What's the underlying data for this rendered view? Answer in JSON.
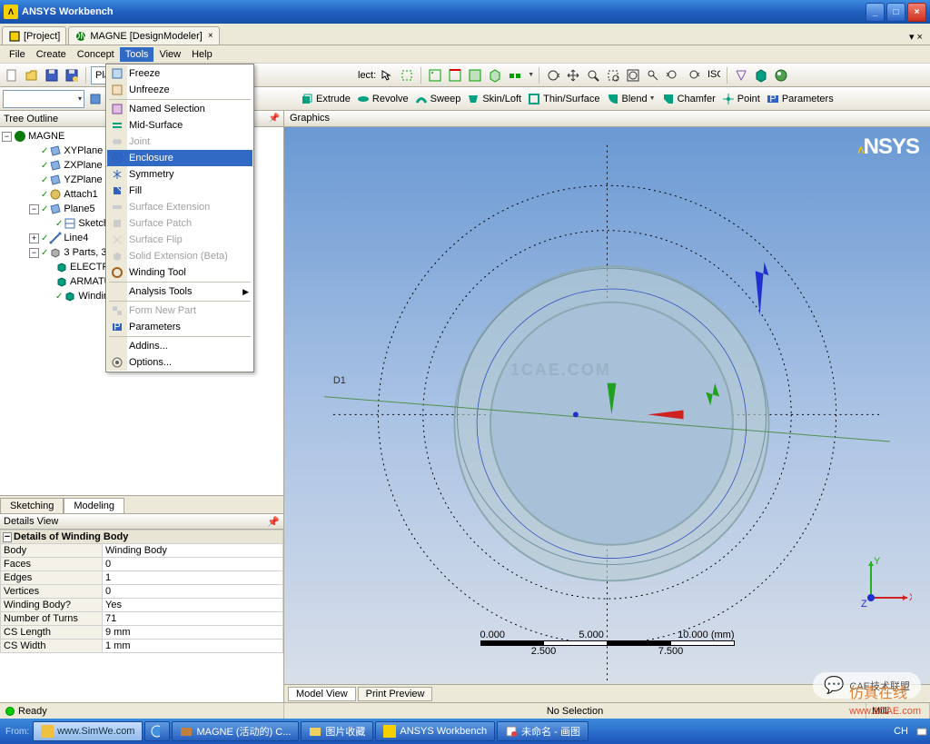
{
  "title": "ANSYS Workbench",
  "tabs": [
    {
      "label": "[Project]",
      "icon": "project"
    },
    {
      "label": "MAGNE [DesignModeler]",
      "icon": "dm",
      "closable": true
    }
  ],
  "menu": [
    "File",
    "Create",
    "Concept",
    "Tools",
    "View",
    "Help"
  ],
  "active_menu": "Tools",
  "combo_plane": "Plane5",
  "combo_sketch": "",
  "toolbar2": {
    "select_label": "lect:",
    "generate": "",
    "extrude": "Extrude",
    "revolve": "Revolve",
    "sweep": "Sweep",
    "skinloft": "Skin/Loft",
    "thin": "Thin/Surface",
    "blend": "Blend",
    "chamfer": "Chamfer",
    "point": "Point",
    "parameters": "Parameters"
  },
  "tools_menu": [
    {
      "label": "Freeze",
      "icon": "freeze"
    },
    {
      "label": "Unfreeze",
      "icon": "unfreeze"
    },
    {
      "sep": true
    },
    {
      "label": "Named Selection",
      "icon": "namedsel"
    },
    {
      "label": "Mid-Surface",
      "icon": "midsurf"
    },
    {
      "label": "Joint",
      "icon": "joint",
      "disabled": true
    },
    {
      "label": "Enclosure",
      "icon": "enclosure",
      "selected": true
    },
    {
      "label": "Symmetry",
      "icon": "symmetry"
    },
    {
      "label": "Fill",
      "icon": "fill"
    },
    {
      "label": "Surface Extension",
      "icon": "surfext",
      "disabled": true
    },
    {
      "label": "Surface Patch",
      "icon": "surfpatch",
      "disabled": true
    },
    {
      "label": "Surface Flip",
      "icon": "surfflip",
      "disabled": true
    },
    {
      "label": "Solid Extension (Beta)",
      "icon": "solidext",
      "disabled": true
    },
    {
      "label": "Winding Tool",
      "icon": "winding"
    },
    {
      "sep": true
    },
    {
      "label": "Analysis Tools",
      "submenu": true
    },
    {
      "sep": true
    },
    {
      "label": "Form New Part",
      "icon": "formpart",
      "disabled": true
    },
    {
      "label": "Parameters",
      "icon": "params"
    },
    {
      "sep": true
    },
    {
      "label": "Addins..."
    },
    {
      "label": "Options...",
      "icon": "options"
    }
  ],
  "tree": {
    "header": "Tree Outline",
    "root": "MAGNE",
    "items": [
      {
        "label": "XYPlane",
        "indent": 1,
        "icon": "plane",
        "check": true
      },
      {
        "label": "ZXPlane",
        "indent": 1,
        "icon": "plane",
        "check": true
      },
      {
        "label": "YZPlane",
        "indent": 1,
        "icon": "plane",
        "check": true
      },
      {
        "label": "Attach1",
        "indent": 1,
        "icon": "attach",
        "check": true
      },
      {
        "label": "Plane5",
        "indent": 1,
        "icon": "plane",
        "check": true,
        "expand": "-"
      },
      {
        "label": "Sketch",
        "indent": 2,
        "icon": "sketch",
        "check": true
      },
      {
        "label": "Line4",
        "indent": 1,
        "icon": "line",
        "check": true,
        "expand": "+"
      },
      {
        "label": "3 Parts, 3",
        "indent": 1,
        "icon": "parts",
        "check": true,
        "expand": "-"
      },
      {
        "label": "ELECTR",
        "indent": 2,
        "icon": "body"
      },
      {
        "label": "ARMATU",
        "indent": 2,
        "icon": "body"
      },
      {
        "label": "Windin",
        "indent": 2,
        "icon": "body",
        "check": true
      }
    ]
  },
  "sketch_tabs": [
    "Sketching",
    "Modeling"
  ],
  "sketch_active": "Modeling",
  "details": {
    "header": "Details View",
    "section": "Details of Winding Body",
    "rows": [
      [
        "Body",
        "Winding Body"
      ],
      [
        "Faces",
        "0"
      ],
      [
        "Edges",
        "1"
      ],
      [
        "Vertices",
        "0"
      ],
      [
        "Winding Body?",
        "Yes"
      ],
      [
        "Number of Turns",
        "71"
      ],
      [
        "CS Length",
        "9 mm"
      ],
      [
        "CS Width",
        "1 mm"
      ]
    ]
  },
  "graphics_header": "Graphics",
  "dim_label": "D1",
  "view_tabs": [
    "Model View",
    "Print Preview"
  ],
  "view_active": "Model View",
  "scale": {
    "labels_top": [
      "0.000",
      "5.000",
      "10.000 (mm)"
    ],
    "labels_bot": [
      "2.500",
      "7.500"
    ]
  },
  "status": {
    "ready": "Ready",
    "sel": "No Selection",
    "units": "Milli"
  },
  "taskbar": [
    {
      "label": "www.SimWe.com",
      "light": true
    },
    {
      "icon": "ie"
    },
    {
      "label": "MAGNE (活动的) C...",
      "icon": "win"
    },
    {
      "label": "图片收藏",
      "icon": "folder"
    },
    {
      "label": "ANSYS Workbench",
      "icon": "ansys"
    },
    {
      "label": "未命名 - 画图",
      "icon": "paint"
    }
  ],
  "taskbar_right": "CH",
  "watermarks": {
    "center": "1CAE.COM",
    "bottom": "仿真在线",
    "url": "www.1CAE.com",
    "cae": "CAE技术联盟"
  },
  "from_label": "From:",
  "colors": {
    "title_grad_top": "#3c8bdf",
    "accent": "#316ac5",
    "ring": "#9cb8c0",
    "x_arrow": "#d02020",
    "y_arrow": "#20b020",
    "z_arrow": "#2030d0",
    "highlight": "#f5d000"
  }
}
